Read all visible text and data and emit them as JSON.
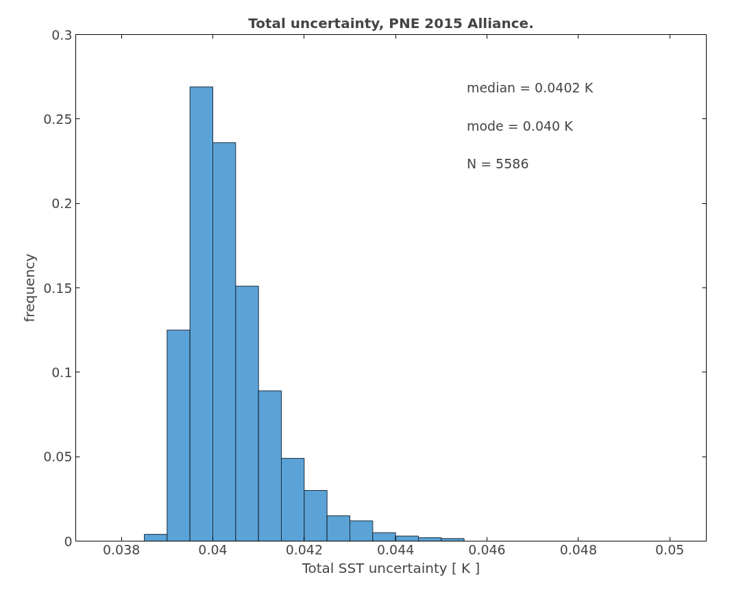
{
  "chart_data": {
    "type": "histogram",
    "title": "Total uncertainty, PNE 2015 Alliance.",
    "xlabel": "Total SST uncertainty [ K ]",
    "ylabel": "frequency",
    "bins": [
      0.0385,
      0.039,
      0.0395,
      0.04,
      0.0405,
      0.041,
      0.0415,
      0.042,
      0.0425,
      0.043,
      0.0435,
      0.044,
      0.0445,
      0.045,
      0.0455,
      0.046,
      0.0465,
      0.047,
      0.0475,
      0.048,
      0.0485,
      0.049,
      0.0495,
      0.05,
      0.0505
    ],
    "values": [
      0.004,
      0.125,
      0.269,
      0.236,
      0.151,
      0.089,
      0.049,
      0.03,
      0.015,
      0.012,
      0.005,
      0.003,
      0.002,
      0.0015,
      null,
      null,
      null,
      null,
      null,
      null,
      null,
      null,
      null,
      null
    ],
    "color": "#5ba3d6",
    "xlim": [
      0.037,
      0.0508
    ],
    "ylim": [
      0,
      0.3
    ],
    "xticks": [
      0.038,
      {
        "value": 0.04,
        "label": "0.04"
      },
      0.042,
      0.044,
      0.046,
      0.048,
      {
        "value": 0.05,
        "label": "0.05"
      }
    ],
    "yticks": [
      0,
      0.05,
      0.1,
      0.15,
      0.2,
      0.25,
      0.3
    ],
    "grid": false,
    "annotations": [
      "median = 0.0402 K",
      "mode   = 0.040 K",
      "N   = 5586"
    ]
  }
}
